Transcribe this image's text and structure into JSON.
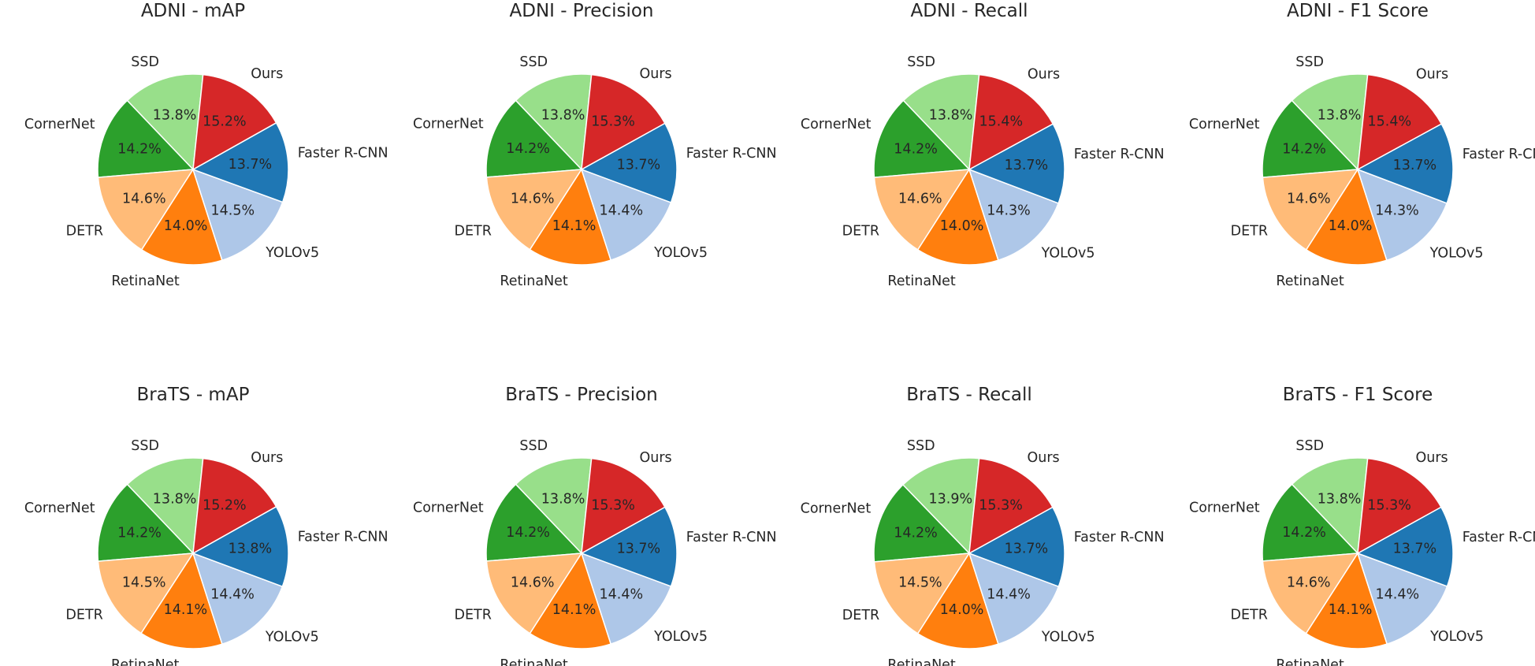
{
  "chart_data": [
    {
      "type": "pie",
      "title": "ADNI - mAP",
      "labels": [
        "SSD",
        "CornerNet",
        "DETR",
        "RetinaNet",
        "YOLOv5",
        "Faster R-CNN",
        "Ours"
      ],
      "percent_labels": [
        "13.8%",
        "14.2%",
        "14.6%",
        "14.0%",
        "14.5%",
        "13.7%",
        "15.2%"
      ],
      "values": [
        13.8,
        14.2,
        14.6,
        14.0,
        14.5,
        13.7,
        15.2
      ]
    },
    {
      "type": "pie",
      "title": "ADNI - Precision",
      "labels": [
        "SSD",
        "CornerNet",
        "DETR",
        "RetinaNet",
        "YOLOv5",
        "Faster R-CNN",
        "Ours"
      ],
      "percent_labels": [
        "13.8%",
        "14.2%",
        "14.6%",
        "14.1%",
        "14.4%",
        "13.7%",
        "15.3%"
      ],
      "values": [
        13.8,
        14.2,
        14.6,
        14.1,
        14.4,
        13.7,
        15.3
      ]
    },
    {
      "type": "pie",
      "title": "ADNI - Recall",
      "labels": [
        "SSD",
        "CornerNet",
        "DETR",
        "RetinaNet",
        "YOLOv5",
        "Faster R-CNN",
        "Ours"
      ],
      "percent_labels": [
        "13.8%",
        "14.2%",
        "14.6%",
        "14.0%",
        "14.3%",
        "13.7%",
        "15.4%"
      ],
      "values": [
        13.8,
        14.2,
        14.6,
        14.0,
        14.3,
        13.7,
        15.4
      ]
    },
    {
      "type": "pie",
      "title": "ADNI - F1 Score",
      "labels": [
        "SSD",
        "CornerNet",
        "DETR",
        "RetinaNet",
        "YOLOv5",
        "Faster R-CNN",
        "Ours"
      ],
      "percent_labels": [
        "13.8%",
        "14.2%",
        "14.6%",
        "14.0%",
        "14.3%",
        "13.7%",
        "15.4%"
      ],
      "values": [
        13.8,
        14.2,
        14.6,
        14.0,
        14.3,
        13.7,
        15.4
      ]
    },
    {
      "type": "pie",
      "title": "BraTS - mAP",
      "labels": [
        "SSD",
        "CornerNet",
        "DETR",
        "RetinaNet",
        "YOLOv5",
        "Faster R-CNN",
        "Ours"
      ],
      "percent_labels": [
        "13.8%",
        "14.2%",
        "14.5%",
        "14.1%",
        "14.4%",
        "13.8%",
        "15.2%"
      ],
      "values": [
        13.8,
        14.2,
        14.5,
        14.1,
        14.4,
        13.8,
        15.2
      ]
    },
    {
      "type": "pie",
      "title": "BraTS - Precision",
      "labels": [
        "SSD",
        "CornerNet",
        "DETR",
        "RetinaNet",
        "YOLOv5",
        "Faster R-CNN",
        "Ours"
      ],
      "percent_labels": [
        "13.8%",
        "14.2%",
        "14.6%",
        "14.1%",
        "14.4%",
        "13.7%",
        "15.3%"
      ],
      "values": [
        13.8,
        14.2,
        14.6,
        14.1,
        14.4,
        13.7,
        15.3
      ]
    },
    {
      "type": "pie",
      "title": "BraTS - Recall",
      "labels": [
        "SSD",
        "CornerNet",
        "DETR",
        "RetinaNet",
        "YOLOv5",
        "Faster R-CNN",
        "Ours"
      ],
      "percent_labels": [
        "13.9%",
        "14.2%",
        "14.5%",
        "14.0%",
        "14.4%",
        "13.7%",
        "15.3%"
      ],
      "values": [
        13.9,
        14.2,
        14.5,
        14.0,
        14.4,
        13.7,
        15.3
      ]
    },
    {
      "type": "pie",
      "title": "BraTS - F1 Score",
      "labels": [
        "SSD",
        "CornerNet",
        "DETR",
        "RetinaNet",
        "YOLOv5",
        "Faster R-CNN",
        "Ours"
      ],
      "percent_labels": [
        "13.8%",
        "14.2%",
        "14.6%",
        "14.1%",
        "14.4%",
        "13.7%",
        "15.3%"
      ],
      "values": [
        13.8,
        14.2,
        14.6,
        14.1,
        14.4,
        13.7,
        15.3
      ]
    }
  ],
  "colors": {
    "SSD": "#98df8a",
    "CornerNet": "#2ca02c",
    "DETR": "#ffbb78",
    "RetinaNet": "#ff7f0e",
    "YOLOv5": "#aec7e8",
    "Faster R-CNN": "#1f77b4",
    "Ours": "#d62728"
  }
}
